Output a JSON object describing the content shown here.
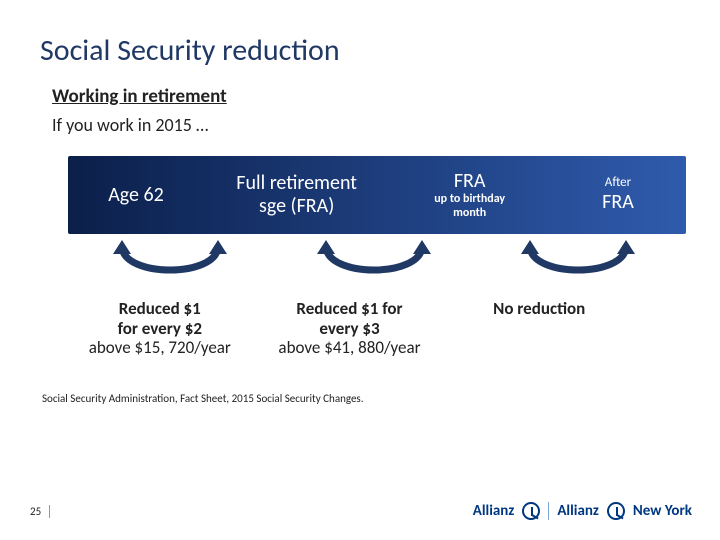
{
  "colors": {
    "title": "#1f3864",
    "text": "#222222",
    "band_gradient_from": "#0b1f4a",
    "band_gradient_to": "#2f5bad",
    "arrow_stroke": "#1f3864",
    "brand": "#003781"
  },
  "title": "Social Security reduction",
  "subtitle": "Working in retirement",
  "intro": "If you work in 2015 …",
  "band": {
    "cells": [
      {
        "line1": "Age 62",
        "line2": "",
        "width_pct": 22
      },
      {
        "line1": "Full retirement",
        "line2": "sge (FRA)",
        "width_pct": 30
      },
      {
        "line1": "FRA",
        "line2": "up to birthday",
        "line3": "month",
        "width_pct": 26
      },
      {
        "line1_small": "After",
        "line2": "FRA",
        "width_pct": 22
      }
    ]
  },
  "arrows": {
    "count": 3
  },
  "results": [
    {
      "bold1": "Reduced $1",
      "bold2": "for every $2",
      "plain": "above $15, 720/year",
      "width_pct": 30
    },
    {
      "bold1": "Reduced $1 for",
      "bold2": "every $3",
      "plain": "above $41, 880/year",
      "width_pct": 32
    },
    {
      "bold1": "No reduction",
      "bold2": "",
      "plain": "",
      "width_pct": 30
    }
  ],
  "source": "Social Security Administration, Fact Sheet, 2015 Social Security Changes.",
  "page_number": "25",
  "brand": {
    "name": "Allianz",
    "sub": "New York"
  }
}
